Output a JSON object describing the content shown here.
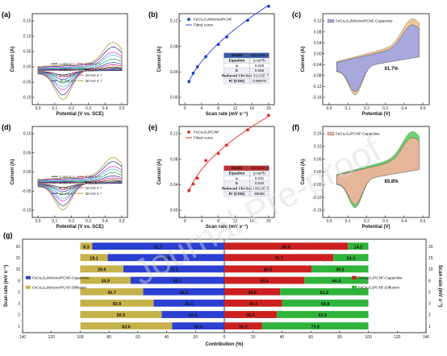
{
  "panels": {
    "a": {
      "label": "(a)",
      "xlabel": "Potential (V vs. SCE)",
      "ylabel": "Current (A)",
      "xticks": [
        "0.0",
        "0.1",
        "0.2",
        "0.3",
        "0.4",
        "0.5"
      ],
      "yticks": [
        "-0.10",
        "-0.05",
        "0.00",
        "0.05",
        "0.10",
        "0.15"
      ],
      "legend": [
        "1 mV s⁻¹",
        "2 mV s⁻¹",
        "3 mV s⁻¹",
        "5 mV s⁻¹",
        "8 mV s⁻¹",
        "10 mV s⁻¹",
        "15 mV s⁻¹",
        "20 mV s⁻¹"
      ]
    },
    "b": {
      "label": "(b)",
      "xlabel": "Scan rate (mV s⁻¹)",
      "ylabel": "Current (A)",
      "xticks": [
        "0",
        "4",
        "8",
        "12",
        "16",
        "20"
      ],
      "yticks": [
        "0.00",
        "0.04",
        "0.08",
        "0.12"
      ],
      "legend": [
        "FeCo₂S₄/MXene/PCNF",
        "Fitted curve"
      ],
      "table": [
        [
          "Model",
          "Allometric 1"
        ],
        [
          "Equation",
          "y=ax^b"
        ],
        [
          "a",
          "0.025"
        ],
        [
          "b",
          "0.586"
        ],
        [
          "Reduced Chi-Sqr",
          "4.31132E-7"
        ],
        [
          "R² (COD)",
          "0.99979"
        ]
      ]
    },
    "c": {
      "label": "(c)",
      "xlabel": "Potential (V)",
      "ylabel": "Current (A)",
      "xticks": [
        "0.0",
        "0.1",
        "0.2",
        "0.3",
        "0.4",
        "0.5"
      ],
      "yticks": [
        "-0.16",
        "-0.12",
        "-0.08",
        "-0.04",
        "0.00",
        "0.04",
        "0.08",
        "0.12"
      ],
      "legend": [
        "FeCo₂S₄/MXene/PCNF-Capacitive"
      ],
      "annotation": "91.7%"
    },
    "d": {
      "label": "(d)",
      "xlabel": "Potential (V vs. SCE)",
      "ylabel": "Current (A)",
      "xticks": [
        "0.0",
        "0.1",
        "0.2",
        "0.3",
        "0.4",
        "0.5"
      ],
      "yticks": [
        "-0.10",
        "-0.05",
        "0.00",
        "0.05",
        "0.10"
      ],
      "legend": [
        "1 mV s⁻¹",
        "2 mV s⁻¹",
        "3 mV s⁻¹",
        "5 mV s⁻¹",
        "8 mV s⁻¹",
        "10 mV s⁻¹",
        "15 mV s⁻¹",
        "20 mV s⁻¹"
      ]
    },
    "e": {
      "label": "(e)",
      "xlabel": "Scan rate (mV s⁻¹)",
      "ylabel": "Current (A)",
      "xticks": [
        "0",
        "4",
        "8",
        "12",
        "16",
        "20"
      ],
      "yticks": [
        "0.00",
        "0.04",
        "0.08",
        "0.12"
      ],
      "legend": [
        "FeCo₂S₄/PCNF",
        "Fitted curve"
      ],
      "table": [
        [
          "Model",
          "Allometric 1"
        ],
        [
          "Equation",
          "y=ax^b"
        ],
        [
          "a",
          "0.031"
        ],
        [
          "b",
          "0.520"
        ],
        [
          "Reduced Chi-Sqr",
          "2.19912E-5"
        ],
        [
          "R² (COD)",
          "98069"
        ]
      ]
    },
    "f": {
      "label": "(f)",
      "xlabel": "Potential (V)",
      "ylabel": "Current (A)",
      "xticks": [
        "0.0",
        "0.1",
        "0.2",
        "0.3",
        "0.4",
        "0.5"
      ],
      "yticks": [
        "-0.15",
        "-0.10",
        "-0.05",
        "0.00",
        "0.05",
        "0.10",
        "0.15"
      ],
      "legend": [
        "FeCo₂S₄/PCNF-Capacitive"
      ],
      "annotation": "85.8%"
    },
    "g": {
      "label": "(g)",
      "xlabel": "Contribution (%)",
      "ylabel_left": "Scan rate (mV s⁻¹)",
      "ylabel_right": "Scan rate (mV s⁻¹)",
      "xticks": [
        "140",
        "120",
        "100",
        "80",
        "60",
        "40",
        "20",
        "0",
        "20",
        "40",
        "60",
        "80",
        "100",
        "120",
        "140"
      ],
      "legend_left": [
        "FeCo₂S₄/MXene/PCNF-Capacitive",
        "FeCo₂S₄/MXene/PCNF-Diffusion"
      ],
      "legend_right": [
        "FeCo₂S₄/PCNF-Capacitive",
        "FeCo₂S₄/PCNF-Diffusion"
      ]
    }
  },
  "chart_data": [
    {
      "type": "scatter",
      "panel": "b",
      "x": [
        1,
        2,
        3,
        5,
        8,
        10,
        15,
        20
      ],
      "y": [
        0.025,
        0.038,
        0.048,
        0.064,
        0.083,
        0.095,
        0.121,
        0.143
      ],
      "fit": {
        "a": 0.025,
        "b": 0.586
      },
      "xlim": [
        0,
        21
      ],
      "ylim": [
        0,
        0.16
      ]
    },
    {
      "type": "scatter",
      "panel": "e",
      "x": [
        1,
        2,
        3,
        5,
        8,
        10,
        15,
        20
      ],
      "y": [
        0.031,
        0.041,
        0.05,
        0.078,
        0.089,
        0.102,
        0.126,
        0.149
      ],
      "fit": {
        "a": 0.031,
        "b": 0.52
      },
      "xlim": [
        0,
        21
      ],
      "ylim": [
        0,
        0.16
      ]
    },
    {
      "type": "bar",
      "panel": "g",
      "categories": [
        "1",
        "2",
        "3",
        "5",
        "8",
        "10",
        "15",
        "20"
      ],
      "series": [
        {
          "name": "FeCo₂S₄/MXene/PCNF-Capacitive",
          "values": [
            36.3,
            43.5,
            49.1,
            56.3,
            65.1,
            70.1,
            80.9,
            91.7
          ],
          "labels": [
            "36.3",
            "43.5",
            "49.1",
            "56.3",
            "65.1",
            "70.1",
            "80.9",
            "91.7"
          ]
        },
        {
          "name": "FeCo₂S₄/MXene/PCNF-Diffusion",
          "values": [
            63.6,
            56.5,
            50.9,
            43.7,
            34.9,
            29.9,
            19.1,
            8.3
          ],
          "labels": [
            "63.6",
            "56.5",
            "50.9",
            "43.7",
            "34.9",
            "29.9",
            "19.1",
            "8.3"
          ]
        },
        {
          "name": "FeCo₂S₄/PCNF-Capacitive",
          "values": [
            26.2,
            36.5,
            40.2,
            38.8,
            55.6,
            60.5,
            75.7,
            85.8
          ],
          "labels": [
            "26.2",
            "36.5",
            "40.2",
            "38.8",
            "55.6",
            "60.5",
            "75.7",
            "85.8"
          ]
        },
        {
          "name": "FeCo₂S₄/PCNF-Diffusion",
          "values": [
            73.8,
            63.5,
            59.8,
            61.2,
            44.4,
            39.5,
            24.3,
            14.2
          ],
          "labels": [
            "73.8",
            "63.5",
            "59.8",
            "61.2",
            "44.4",
            "39.5",
            "24.3",
            "14.2"
          ]
        }
      ],
      "xlim": [
        -140,
        140
      ]
    }
  ],
  "colors": {
    "cv": [
      "#222222",
      "#e0245e",
      "#1f3fd0",
      "#1aa23a",
      "#25c7d8",
      "#d23ad8",
      "#1c2f8f",
      "#b8862a"
    ],
    "blue": "#1f3fd0",
    "red": "#e12a2a",
    "capacitive_left": "#2b3fd0",
    "diffusion_left": "#c6b24a",
    "capacitive_right": "#cc2020",
    "diffusion_right": "#2fb33a",
    "table_header": "#3a5ba8",
    "table_header_e": "#c03030"
  },
  "watermark": "Journal Pre-proof"
}
